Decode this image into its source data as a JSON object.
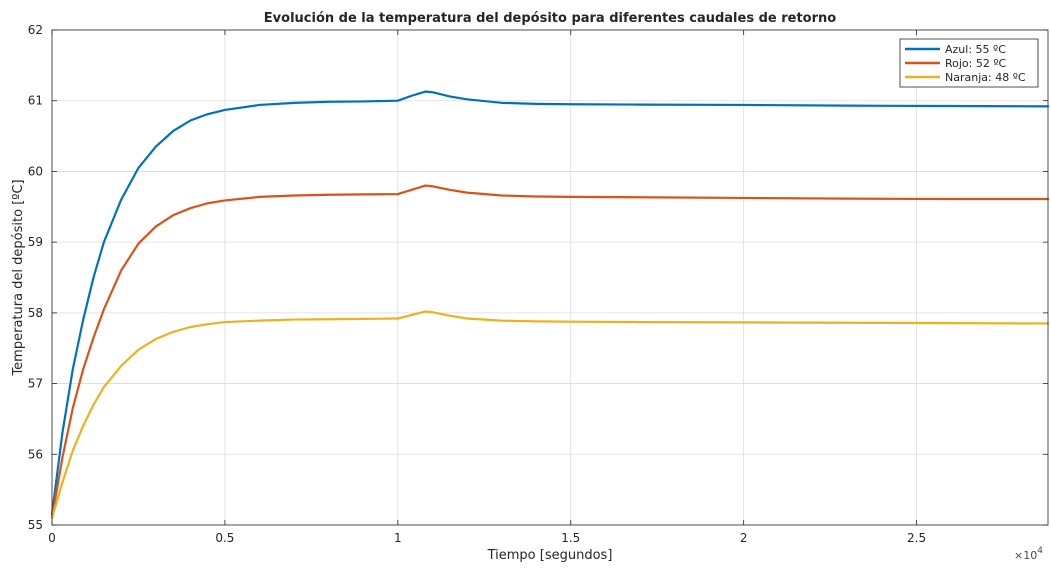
{
  "chart_data": {
    "type": "line",
    "title": "Evolución de la temperatura del depósito para diferentes caudales de retorno",
    "xlabel": "Tiempo [segundos]",
    "ylabel": "Temperatura del depósito [ºC]",
    "x_exponent_base": "×10",
    "x_exponent_power": "4",
    "xlim": [
      0,
      28800
    ],
    "ylim": [
      55,
      62
    ],
    "x_ticks": [
      0,
      5000,
      10000,
      15000,
      20000,
      25000
    ],
    "x_tick_labels": [
      "0",
      "0.5",
      "1",
      "1.5",
      "2",
      "2.5"
    ],
    "y_ticks": [
      55,
      56,
      57,
      58,
      59,
      60,
      61,
      62
    ],
    "y_tick_labels": [
      "55",
      "56",
      "57",
      "58",
      "59",
      "60",
      "61",
      "62"
    ],
    "grid": true,
    "legend_position": "top-right",
    "series": [
      {
        "name": "Azul: 55 ºC",
        "color": "#0072BD",
        "x": [
          0,
          300,
          600,
          900,
          1200,
          1500,
          2000,
          2500,
          3000,
          3500,
          4000,
          4500,
          5000,
          6000,
          7000,
          8000,
          9000,
          10000,
          10400,
          10800,
          11000,
          11500,
          12000,
          13000,
          14000,
          15000,
          17000,
          20000,
          23000,
          26000,
          28800
        ],
        "y": [
          55.15,
          56.3,
          57.2,
          57.9,
          58.5,
          59.0,
          59.6,
          60.05,
          60.35,
          60.57,
          60.72,
          60.81,
          60.87,
          60.94,
          60.97,
          60.985,
          60.99,
          61.0,
          61.07,
          61.13,
          61.12,
          61.06,
          61.02,
          60.97,
          60.955,
          60.95,
          60.945,
          60.94,
          60.93,
          60.925,
          60.92
        ]
      },
      {
        "name": "Rojo: 52 ºC",
        "color": "#D95319",
        "x": [
          0,
          300,
          600,
          900,
          1200,
          1500,
          2000,
          2500,
          3000,
          3500,
          4000,
          4500,
          5000,
          6000,
          7000,
          8000,
          9000,
          10000,
          10400,
          10800,
          11000,
          11500,
          12000,
          13000,
          14000,
          15000,
          17000,
          20000,
          23000,
          26000,
          28800
        ],
        "y": [
          55.1,
          55.95,
          56.65,
          57.2,
          57.65,
          58.05,
          58.6,
          58.98,
          59.22,
          59.38,
          59.48,
          59.55,
          59.59,
          59.64,
          59.66,
          59.67,
          59.675,
          59.68,
          59.74,
          59.8,
          59.79,
          59.74,
          59.7,
          59.66,
          59.645,
          59.64,
          59.635,
          59.625,
          59.615,
          59.61,
          59.61
        ]
      },
      {
        "name": "Naranja: 48 ºC",
        "color": "#EDB120",
        "x": [
          0,
          300,
          600,
          900,
          1200,
          1500,
          2000,
          2500,
          3000,
          3500,
          4000,
          4500,
          5000,
          6000,
          7000,
          8000,
          9000,
          10000,
          10400,
          10800,
          11000,
          11500,
          12000,
          13000,
          14000,
          15000,
          17000,
          20000,
          23000,
          26000,
          28800
        ],
        "y": [
          55.1,
          55.6,
          56.05,
          56.4,
          56.7,
          56.95,
          57.25,
          57.48,
          57.63,
          57.73,
          57.8,
          57.84,
          57.87,
          57.89,
          57.905,
          57.91,
          57.915,
          57.92,
          57.97,
          58.02,
          58.01,
          57.96,
          57.92,
          57.89,
          57.88,
          57.875,
          57.87,
          57.865,
          57.86,
          57.855,
          57.85
        ]
      }
    ]
  }
}
